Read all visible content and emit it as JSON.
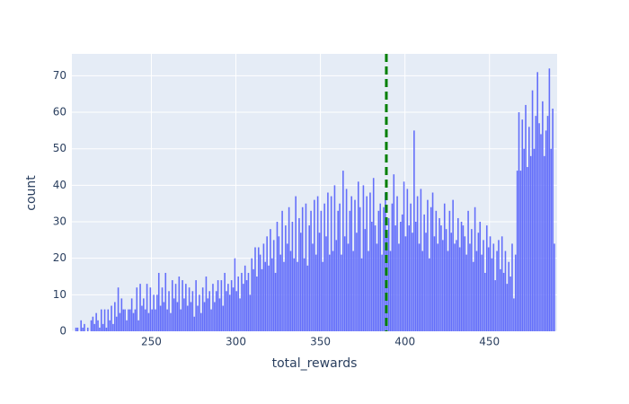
{
  "chart_data": {
    "type": "histogram",
    "xlabel": "total_rewards",
    "ylabel": "count",
    "color": "#636efa",
    "background": "#e5ecf6",
    "grid": true,
    "xlim": [
      203,
      490
    ],
    "ylim": [
      0,
      76
    ],
    "xticks": [
      250,
      300,
      350,
      400,
      450
    ],
    "yticks": [
      0,
      10,
      20,
      30,
      40,
      50,
      60,
      70
    ],
    "vline": {
      "x": 389,
      "color": "green"
    },
    "bins": [
      205,
      206,
      207,
      208,
      209,
      210,
      211,
      212,
      213,
      214,
      215,
      216,
      217,
      218,
      219,
      220,
      221,
      222,
      223,
      224,
      225,
      226,
      227,
      228,
      229,
      230,
      231,
      232,
      233,
      234,
      235,
      236,
      237,
      238,
      239,
      240,
      241,
      242,
      243,
      244,
      245,
      246,
      247,
      248,
      249,
      250,
      251,
      252,
      253,
      254,
      255,
      256,
      257,
      258,
      259,
      260,
      261,
      262,
      263,
      264,
      265,
      266,
      267,
      268,
      269,
      270,
      271,
      272,
      273,
      274,
      275,
      276,
      277,
      278,
      279,
      280,
      281,
      282,
      283,
      284,
      285,
      286,
      287,
      288,
      289,
      290,
      291,
      292,
      293,
      294,
      295,
      296,
      297,
      298,
      299,
      300,
      301,
      302,
      303,
      304,
      305,
      306,
      307,
      308,
      309,
      310,
      311,
      312,
      313,
      314,
      315,
      316,
      317,
      318,
      319,
      320,
      321,
      322,
      323,
      324,
      325,
      326,
      327,
      328,
      329,
      330,
      331,
      332,
      333,
      334,
      335,
      336,
      337,
      338,
      339,
      340,
      341,
      342,
      343,
      344,
      345,
      346,
      347,
      348,
      349,
      350,
      351,
      352,
      353,
      354,
      355,
      356,
      357,
      358,
      359,
      360,
      361,
      362,
      363,
      364,
      365,
      366,
      367,
      368,
      369,
      370,
      371,
      372,
      373,
      374,
      375,
      376,
      377,
      378,
      379,
      380,
      381,
      382,
      383,
      384,
      385,
      386,
      387,
      388,
      389,
      390,
      391,
      392,
      393,
      394,
      395,
      396,
      397,
      398,
      399,
      400,
      401,
      402,
      403,
      404,
      405,
      406,
      407,
      408,
      409,
      410,
      411,
      412,
      413,
      414,
      415,
      416,
      417,
      418,
      419,
      420,
      421,
      422,
      423,
      424,
      425,
      426,
      427,
      428,
      429,
      430,
      431,
      432,
      433,
      434,
      435,
      436,
      437,
      438,
      439,
      440,
      441,
      442,
      443,
      444,
      445,
      446,
      447,
      448,
      449,
      450,
      451,
      452,
      453,
      454,
      455,
      456,
      457,
      458,
      459,
      460,
      461,
      462,
      463,
      464,
      465,
      466,
      467,
      468,
      469,
      470,
      471,
      472,
      473,
      474,
      475,
      476,
      477,
      478,
      479,
      480,
      481,
      482,
      483,
      484,
      485,
      486,
      487,
      488,
      489
    ],
    "values": [
      1,
      1,
      0,
      3,
      1,
      2,
      0,
      1,
      0,
      3,
      4,
      2,
      5,
      3,
      1,
      6,
      2,
      6,
      1,
      6,
      3,
      7,
      2,
      8,
      4,
      12,
      5,
      9,
      6,
      6,
      3,
      6,
      6,
      9,
      5,
      6,
      12,
      3,
      13,
      7,
      9,
      6,
      13,
      5,
      12,
      6,
      10,
      6,
      10,
      16,
      7,
      12,
      8,
      16,
      6,
      11,
      5,
      14,
      9,
      13,
      8,
      15,
      6,
      14,
      9,
      13,
      7,
      12,
      8,
      11,
      4,
      14,
      7,
      10,
      5,
      12,
      8,
      15,
      9,
      11,
      6,
      13,
      8,
      11,
      14,
      9,
      14,
      7,
      16,
      11,
      13,
      10,
      14,
      12,
      20,
      11,
      15,
      9,
      16,
      13,
      18,
      14,
      16,
      10,
      20,
      17,
      23,
      15,
      23,
      21,
      17,
      24,
      19,
      26,
      18,
      28,
      20,
      25,
      16,
      30,
      26,
      21,
      33,
      19,
      29,
      24,
      34,
      22,
      30,
      20,
      37,
      19,
      31,
      27,
      34,
      20,
      35,
      18,
      29,
      33,
      24,
      36,
      21,
      37,
      27,
      33,
      19,
      35,
      26,
      38,
      21,
      37,
      22,
      40,
      25,
      33,
      35,
      21,
      44,
      26,
      39,
      24,
      33,
      37,
      22,
      36,
      27,
      41,
      34,
      20,
      40,
      28,
      37,
      22,
      38,
      30,
      42,
      29,
      24,
      33,
      35,
      21,
      34,
      38,
      27,
      31,
      22,
      35,
      43,
      29,
      37,
      24,
      30,
      32,
      41,
      26,
      39,
      29,
      35,
      27,
      55,
      30,
      37,
      24,
      39,
      22,
      32,
      27,
      36,
      20,
      34,
      38,
      26,
      33,
      24,
      31,
      29,
      25,
      35,
      28,
      22,
      33,
      27,
      36,
      24,
      25,
      31,
      23,
      30,
      29,
      26,
      21,
      33,
      24,
      28,
      19,
      34,
      22,
      27,
      30,
      21,
      25,
      16,
      29,
      23,
      26,
      20,
      24,
      14,
      22,
      25,
      17,
      26,
      16,
      22,
      13,
      19,
      15,
      24,
      9,
      21,
      44,
      60,
      44,
      58,
      50,
      62,
      45,
      56,
      48,
      66,
      50,
      59,
      71,
      57,
      54,
      63,
      48,
      55,
      59,
      72,
      50,
      61,
      24
    ]
  }
}
